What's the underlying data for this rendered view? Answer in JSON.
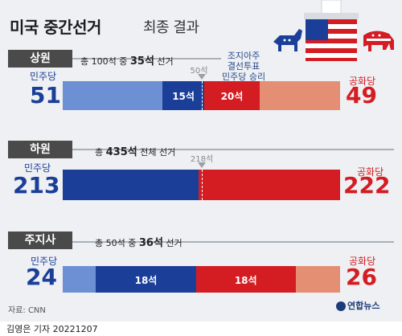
{
  "header": {
    "title_main": "미국 중간선거",
    "title_sub": "최종 결과"
  },
  "parties": {
    "dem": "민주당",
    "rep": "공화당",
    "dem_color": "#1b3f99",
    "dem_light_color": "#6d8fd4",
    "rep_color": "#d31d22",
    "rep_light_color": "#e48e74"
  },
  "chart_data": [
    {
      "type": "bar",
      "section": "상원",
      "note_prefix": "총 100석 중",
      "note_value": "35석",
      "note_suffix": "선거",
      "total": 100,
      "dem_total": 51,
      "rep_total": 49,
      "segments": [
        {
          "party": "dem",
          "kind": "existing",
          "value": 36,
          "label": ""
        },
        {
          "party": "dem",
          "kind": "elected",
          "value": 15,
          "label": "15석"
        },
        {
          "party": "rep",
          "kind": "elected",
          "value": 20,
          "label": "20석"
        },
        {
          "party": "rep",
          "kind": "existing",
          "value": 29,
          "label": ""
        }
      ],
      "marker_value": 50,
      "marker_label": "50석",
      "annotation": [
        "조지아주",
        "결선투표",
        "민주당 승리"
      ]
    },
    {
      "type": "bar",
      "section": "하원",
      "note_prefix": "총",
      "note_value": "435석",
      "note_suffix": "전체 선거",
      "total": 435,
      "dem_total": 213,
      "rep_total": 222,
      "segments": [
        {
          "party": "dem",
          "kind": "elected",
          "value": 213,
          "label": ""
        },
        {
          "party": "rep",
          "kind": "elected",
          "value": 222,
          "label": ""
        }
      ],
      "marker_value": 218,
      "marker_label": "218석"
    },
    {
      "type": "bar",
      "section": "주지사",
      "note_prefix": "총 50석 중",
      "note_value": "36석",
      "note_suffix": "선거",
      "total": 50,
      "dem_total": 24,
      "rep_total": 26,
      "segments": [
        {
          "party": "dem",
          "kind": "existing",
          "value": 6,
          "label": ""
        },
        {
          "party": "dem",
          "kind": "elected",
          "value": 18,
          "label": "18석"
        },
        {
          "party": "rep",
          "kind": "elected",
          "value": 18,
          "label": "18석"
        },
        {
          "party": "rep",
          "kind": "existing",
          "value": 8,
          "label": ""
        }
      ]
    }
  ],
  "footer": {
    "source": "자료: CNN",
    "credit": "김영은 기자  20221207",
    "logo": "연합뉴스"
  }
}
